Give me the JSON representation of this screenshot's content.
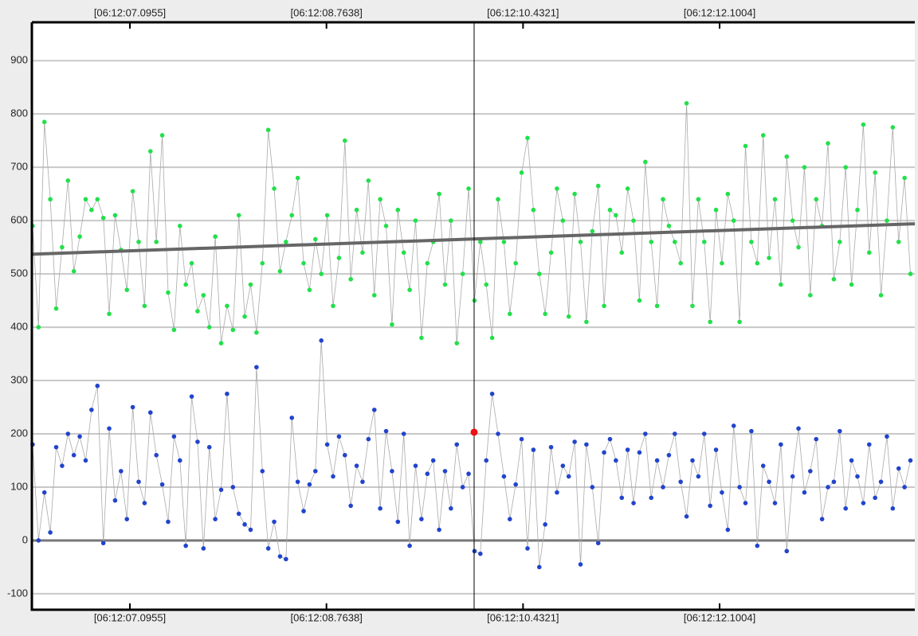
{
  "chart_data": {
    "type": "scatter-line",
    "xlim": [
      6.2637,
      13.757
    ],
    "ylim": [
      -130,
      972
    ],
    "xticks": [
      {
        "value": 7.0955,
        "label": "[06:12:07.0955]"
      },
      {
        "value": 8.7638,
        "label": "[06:12:08.7638]"
      },
      {
        "value": 10.4321,
        "label": "[06:12:10.4321]"
      },
      {
        "value": 12.1004,
        "label": "[06:12:12.1004]"
      }
    ],
    "yticks": [
      -100,
      0,
      100,
      200,
      300,
      400,
      500,
      600,
      700,
      800,
      900
    ],
    "grid": true,
    "zero_line": true,
    "line_color": "#aaaaaa",
    "x": [
      6.27,
      6.32,
      6.37,
      6.42,
      6.47,
      6.52,
      6.57,
      6.62,
      6.67,
      6.72,
      6.77,
      6.82,
      6.87,
      6.92,
      6.97,
      7.02,
      7.07,
      7.12,
      7.17,
      7.22,
      7.27,
      7.32,
      7.37,
      7.42,
      7.47,
      7.52,
      7.57,
      7.62,
      7.67,
      7.72,
      7.77,
      7.82,
      7.87,
      7.92,
      7.97,
      8.02,
      8.07,
      8.12,
      8.17,
      8.22,
      8.27,
      8.32,
      8.37,
      8.42,
      8.47,
      8.52,
      8.57,
      8.62,
      8.67,
      8.72,
      8.77,
      8.82,
      8.87,
      8.92,
      8.97,
      9.02,
      9.07,
      9.12,
      9.17,
      9.22,
      9.27,
      9.32,
      9.37,
      9.42,
      9.47,
      9.52,
      9.57,
      9.62,
      9.67,
      9.72,
      9.77,
      9.82,
      9.87,
      9.92,
      9.97,
      10.02,
      10.07,
      10.12,
      10.17,
      10.22,
      10.27,
      10.32,
      10.37,
      10.42,
      10.47,
      10.52,
      10.57,
      10.62,
      10.67,
      10.72,
      10.77,
      10.82,
      10.87,
      10.92,
      10.97,
      11.02,
      11.07,
      11.12,
      11.17,
      11.22,
      11.27,
      11.32,
      11.37,
      11.42,
      11.47,
      11.52,
      11.57,
      11.62,
      11.67,
      11.72,
      11.77,
      11.82,
      11.87,
      11.92,
      11.97,
      12.02,
      12.07,
      12.12,
      12.17,
      12.22,
      12.27,
      12.32,
      12.37,
      12.42,
      12.47,
      12.52,
      12.57,
      12.62,
      12.67,
      12.72,
      12.77,
      12.82,
      12.87,
      12.92,
      12.97,
      13.02,
      13.07,
      13.12,
      13.17,
      13.22,
      13.27,
      13.32,
      13.37,
      13.42,
      13.47,
      13.52,
      13.57,
      13.62,
      13.67,
      13.72
    ],
    "series": [
      {
        "color": "#22e04a",
        "values": [
          590,
          400,
          785,
          640,
          435,
          550,
          675,
          505,
          570,
          640,
          620,
          640,
          605,
          425,
          610,
          545,
          470,
          655,
          560,
          440,
          730,
          560,
          760,
          465,
          395,
          590,
          480,
          520,
          430,
          460,
          400,
          570,
          370,
          440,
          395,
          610,
          420,
          480,
          390,
          520,
          770,
          660,
          505,
          560,
          610,
          680,
          520,
          470,
          565,
          500,
          610,
          440,
          530,
          750,
          490,
          620,
          540,
          675,
          460,
          640,
          590,
          405,
          620,
          540,
          470,
          600,
          380,
          520,
          560,
          650,
          480,
          600,
          370,
          500,
          660,
          450,
          560,
          480,
          380,
          640,
          560,
          425,
          520,
          690,
          755,
          620,
          500,
          425,
          540,
          660,
          600,
          420,
          650,
          560,
          410,
          580,
          665,
          440,
          620,
          610,
          540,
          660,
          600,
          450,
          710,
          560,
          440,
          640,
          590,
          560,
          520,
          820,
          440,
          640,
          560,
          410,
          620,
          520,
          650,
          600,
          410,
          740,
          560,
          520,
          760,
          530,
          640,
          480,
          720,
          600,
          550,
          700,
          460,
          640,
          590,
          745,
          490,
          560,
          700,
          480,
          620,
          780,
          540,
          690,
          460,
          600,
          775,
          560,
          680,
          500
        ]
      },
      {
        "color": "#2244cc",
        "values": [
          180,
          0,
          90,
          15,
          175,
          140,
          200,
          160,
          195,
          150,
          245,
          290,
          -5,
          210,
          75,
          130,
          40,
          250,
          110,
          70,
          240,
          160,
          105,
          35,
          195,
          150,
          -10,
          270,
          185,
          -15,
          175,
          40,
          95,
          275,
          100,
          50,
          30,
          20,
          325,
          130,
          -15,
          35,
          -30,
          -35,
          230,
          110,
          55,
          105,
          130,
          375,
          180,
          120,
          195,
          160,
          65,
          140,
          110,
          190,
          245,
          60,
          205,
          130,
          35,
          200,
          -10,
          140,
          40,
          125,
          150,
          20,
          130,
          60,
          180,
          100,
          125,
          -20,
          -25,
          150,
          275,
          200,
          120,
          40,
          105,
          190,
          -15,
          170,
          -50,
          30,
          175,
          90,
          140,
          120,
          185,
          -45,
          180,
          100,
          -5,
          165,
          190,
          150,
          80,
          170,
          70,
          165,
          200,
          80,
          150,
          100,
          160,
          200,
          110,
          45,
          150,
          120,
          200,
          65,
          170,
          90,
          20,
          215,
          100,
          70,
          205,
          -10,
          140,
          110,
          70,
          180,
          -20,
          120,
          210,
          90,
          130,
          190,
          40,
          100,
          110,
          205,
          60,
          150,
          120,
          70,
          180,
          80,
          110,
          195,
          60,
          135,
          100,
          150
        ]
      }
    ],
    "trend": {
      "color": "#666666",
      "x": [
        6.2637,
        13.757
      ],
      "values": [
        537,
        594
      ]
    },
    "cursor": {
      "x": 10.017,
      "value": 203,
      "color": "#ee1111"
    }
  }
}
